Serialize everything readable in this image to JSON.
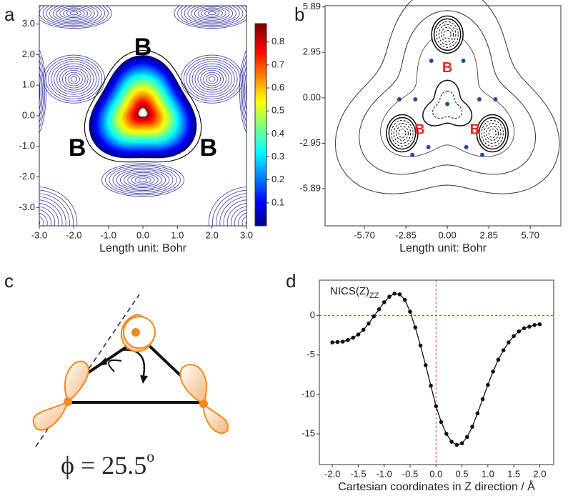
{
  "chart_data": [
    {
      "type": "contour",
      "panel": "a",
      "x_label": "Length unit: Bohr",
      "xlim": [
        -3,
        3
      ],
      "ylim": [
        -3.6,
        3.6
      ],
      "xticks": [
        {
          "value": -3,
          "label": "-3.0"
        },
        {
          "value": -2,
          "label": "-2.0"
        },
        {
          "value": -1,
          "label": "-1.0"
        },
        {
          "value": 0,
          "label": "0.0"
        },
        {
          "value": 1,
          "label": "1.0"
        },
        {
          "value": 2,
          "label": "2.0"
        },
        {
          "value": 3,
          "label": "3.0"
        }
      ],
      "yticks": [
        {
          "value": -3,
          "label": "-3.0"
        },
        {
          "value": -2,
          "label": "-2.0"
        },
        {
          "value": -1,
          "label": "-1.0"
        },
        {
          "value": 0,
          "label": "0.0"
        },
        {
          "value": 1,
          "label": "1.0"
        },
        {
          "value": 2,
          "label": "2.0"
        },
        {
          "value": 3,
          "label": "3.0"
        }
      ],
      "colorbar_lim": [
        0,
        0.88
      ],
      "colorbar_ticks": [
        0.1,
        0.2,
        0.3,
        0.4,
        0.5,
        0.6,
        0.7,
        0.8
      ],
      "line_color": "#3b3ba8",
      "annotations": [
        {
          "text": "B",
          "x": 0,
          "y": 2.2
        },
        {
          "text": "B",
          "x": -1.9,
          "y": -1.1
        },
        {
          "text": "B",
          "x": 1.9,
          "y": -1.1
        }
      ]
    },
    {
      "type": "contour",
      "panel": "b",
      "x_label": "Length unit: Bohr",
      "xlim": [
        -8.4,
        7.8
      ],
      "ylim": [
        -8.3,
        5.97
      ],
      "xticks": [
        {
          "value": -5.7,
          "label": "-5.70"
        },
        -2.85,
        {
          "value": 0,
          "label": "0.00"
        },
        2.85,
        {
          "value": 5.7,
          "label": "5.70"
        }
      ],
      "yticks": [
        5.89,
        2.95,
        {
          "value": 0,
          "label": "0.00"
        },
        -2.95,
        -5.89
      ],
      "atom_color": "#e8262b",
      "point_color": "#1f4e9c",
      "annotations": [
        {
          "text": "B",
          "x": 0,
          "y": 1.9
        },
        {
          "text": "B",
          "x": -1.9,
          "y": -2.1
        },
        {
          "text": "B",
          "x": 1.9,
          "y": -2.1
        }
      ]
    },
    {
      "type": "diagram",
      "panel": "c",
      "equation": "ϕ = 25.5",
      "equation_sup": "o",
      "color": "#f08a1c"
    },
    {
      "type": "line",
      "panel": "d",
      "annotation": "NICS(Z)",
      "annotation_sub": "ZZ",
      "x_label": "Cartesian coordinates in Z direction / Å",
      "xlim": [
        -2.25,
        2.27
      ],
      "ylim": [
        -18.9,
        4.5
      ],
      "xticks": [
        {
          "value": -2,
          "label": "-2.0"
        },
        {
          "value": -1.5,
          "label": "-1.5"
        },
        {
          "value": -1,
          "label": "-1.0"
        },
        {
          "value": -0.5,
          "label": "-0.5"
        },
        {
          "value": 0,
          "label": "0.0"
        },
        {
          "value": 0.5,
          "label": "0.5"
        },
        {
          "value": 1,
          "label": "1.0"
        },
        {
          "value": 1.5,
          "label": "1.5"
        },
        {
          "value": 2,
          "label": "2.0"
        }
      ],
      "yticks": [
        -15,
        -10,
        -5,
        0
      ],
      "vline_color": "#e0302a",
      "hline_color": "#4a4ad0",
      "series": [
        {
          "color": "#111111",
          "x": [
            -2.0,
            -1.9,
            -1.8,
            -1.7,
            -1.6,
            -1.5,
            -1.4,
            -1.3,
            -1.2,
            -1.1,
            -1.0,
            -0.9,
            -0.8,
            -0.7,
            -0.6,
            -0.5,
            -0.4,
            -0.3,
            -0.2,
            -0.1,
            0.0,
            0.1,
            0.2,
            0.3,
            0.4,
            0.5,
            0.6,
            0.7,
            0.8,
            0.9,
            1.0,
            1.1,
            1.2,
            1.3,
            1.4,
            1.5,
            1.6,
            1.7,
            1.8,
            1.9,
            2.0
          ],
          "values": [
            -3.4,
            -3.35,
            -3.3,
            -3.1,
            -2.8,
            -2.4,
            -1.8,
            -1.0,
            -0.1,
            0.8,
            1.7,
            2.4,
            2.8,
            2.7,
            2.0,
            0.5,
            -1.5,
            -3.8,
            -6.3,
            -8.9,
            -11.5,
            -13.5,
            -15.0,
            -16.0,
            -16.4,
            -16.2,
            -15.4,
            -14.1,
            -12.4,
            -10.6,
            -8.8,
            -7.1,
            -5.6,
            -4.4,
            -3.4,
            -2.6,
            -2.0,
            -1.6,
            -1.4,
            -1.2,
            -1.1
          ]
        }
      ]
    }
  ]
}
